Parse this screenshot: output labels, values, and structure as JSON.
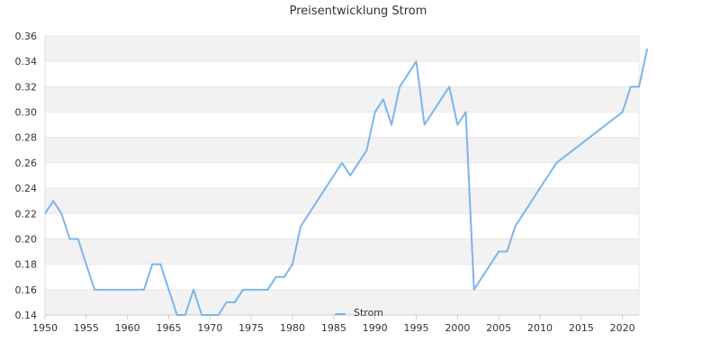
{
  "chart_data": {
    "type": "line",
    "title": "Preisentwicklung Strom",
    "xlabel": "",
    "ylabel": "",
    "xlim": [
      1950,
      2022
    ],
    "ylim": [
      0.14,
      0.36
    ],
    "x_ticks": [
      1950,
      1955,
      1960,
      1965,
      1970,
      1975,
      1980,
      1985,
      1990,
      1995,
      2000,
      2005,
      2010,
      2015,
      2020
    ],
    "y_ticks": [
      "0.14",
      "0.16",
      "0.18",
      "0.20",
      "0.22",
      "0.24",
      "0.26",
      "0.28",
      "0.30",
      "0.32",
      "0.34",
      "0.36"
    ],
    "grid": "horizontal bands",
    "legend_position": "bottom-center",
    "series": [
      {
        "name": "Strom",
        "color": "#7cb5ec",
        "points": [
          [
            1950,
            0.22
          ],
          [
            1951,
            0.23
          ],
          [
            1952,
            0.22
          ],
          [
            1953,
            0.2
          ],
          [
            1954,
            0.2
          ],
          [
            1955,
            0.18
          ],
          [
            1956,
            0.16
          ],
          [
            1957,
            0.16
          ],
          [
            1958,
            0.16
          ],
          [
            1959,
            0.16
          ],
          [
            1960,
            0.16
          ],
          [
            1961,
            0.16
          ],
          [
            1962,
            0.16
          ],
          [
            1963,
            0.18
          ],
          [
            1964,
            0.18
          ],
          [
            1965,
            0.16
          ],
          [
            1966,
            0.14
          ],
          [
            1967,
            0.14
          ],
          [
            1968,
            0.16
          ],
          [
            1969,
            0.14
          ],
          [
            1970,
            0.14
          ],
          [
            1971,
            0.14
          ],
          [
            1972,
            0.15
          ],
          [
            1973,
            0.15
          ],
          [
            1974,
            0.16
          ],
          [
            1975,
            0.16
          ],
          [
            1976,
            0.16
          ],
          [
            1977,
            0.16
          ],
          [
            1978,
            0.17
          ],
          [
            1979,
            0.17
          ],
          [
            1980,
            0.18
          ],
          [
            1981,
            0.21
          ],
          [
            1982,
            0.22
          ],
          [
            1983,
            0.23
          ],
          [
            1984,
            0.24
          ],
          [
            1985,
            0.25
          ],
          [
            1986,
            0.26
          ],
          [
            1987,
            0.25
          ],
          [
            1988,
            0.26
          ],
          [
            1989,
            0.27
          ],
          [
            1990,
            0.3
          ],
          [
            1991,
            0.31
          ],
          [
            1992,
            0.29
          ],
          [
            1993,
            0.32
          ],
          [
            1994,
            0.33
          ],
          [
            1995,
            0.34
          ],
          [
            1996,
            0.29
          ],
          [
            1997,
            0.3
          ],
          [
            1998,
            0.31
          ],
          [
            1999,
            0.32
          ],
          [
            2000,
            0.29
          ],
          [
            2001,
            0.3
          ],
          [
            2002,
            0.16
          ],
          [
            2003,
            0.17
          ],
          [
            2004,
            0.18
          ],
          [
            2005,
            0.19
          ],
          [
            2006,
            0.19
          ],
          [
            2007,
            0.21
          ],
          [
            2008,
            0.22
          ],
          [
            2009,
            0.23
          ],
          [
            2010,
            0.24
          ],
          [
            2011,
            0.25
          ],
          [
            2012,
            0.26
          ],
          [
            2013,
            0.265
          ],
          [
            2014,
            0.27
          ],
          [
            2015,
            0.275
          ],
          [
            2016,
            0.28
          ],
          [
            2017,
            0.285
          ],
          [
            2018,
            0.29
          ],
          [
            2019,
            0.295
          ],
          [
            2020,
            0.3
          ],
          [
            2021,
            0.32
          ],
          [
            2022,
            0.32
          ],
          [
            2023,
            0.35
          ]
        ]
      }
    ]
  }
}
